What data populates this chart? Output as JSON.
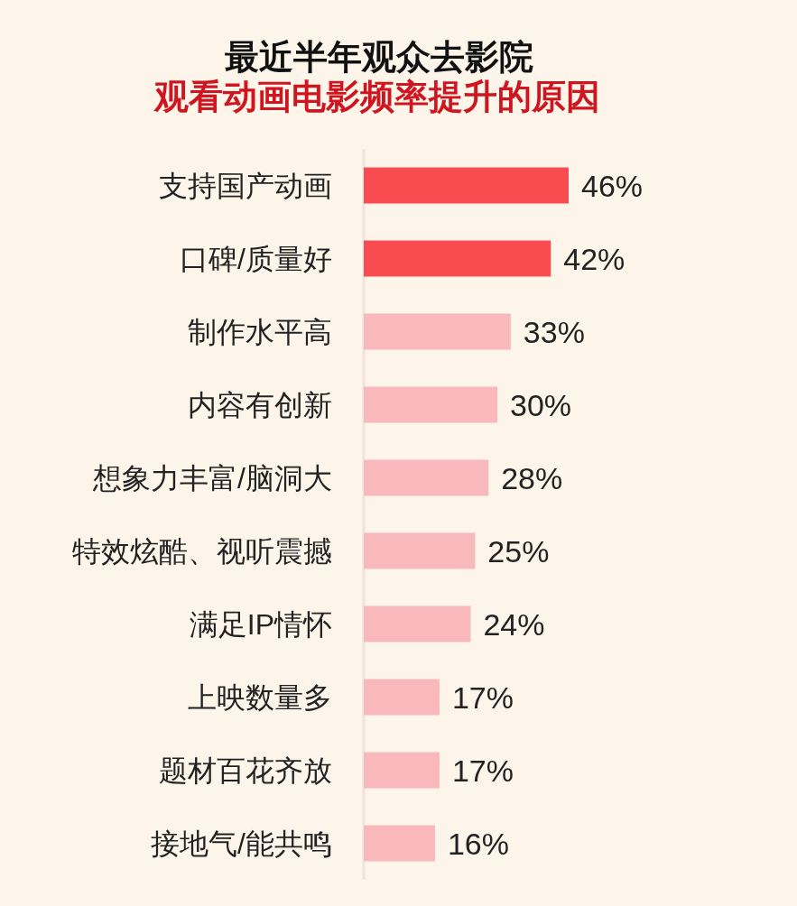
{
  "chart_data": {
    "type": "bar",
    "orientation": "horizontal",
    "title": "最近半年观众去影院",
    "subtitle": "观看动画电影频率提升的原因",
    "categories": [
      "支持国产动画",
      "口碑/质量好",
      "制作水平高",
      "内容有创新",
      "想象力丰富/脑洞大",
      "特效炫酷、视听震撼",
      "满足IP情怀",
      "上映数量多",
      "题材百花齐放",
      "接地气/能共鸣"
    ],
    "values": [
      46,
      42,
      33,
      30,
      28,
      25,
      24,
      17,
      17,
      16
    ],
    "colors": [
      "#f94c50",
      "#f94c50",
      "#f9b8bb",
      "#f9b8bb",
      "#f9b8bb",
      "#f9b8bb",
      "#f9b8bb",
      "#f9b8bb",
      "#f9b8bb",
      "#f9b8bb"
    ],
    "value_labels": [
      "46%",
      "42%",
      "33%",
      "30%",
      "28%",
      "25%",
      "24%",
      "17%",
      "17%",
      "16%"
    ]
  }
}
